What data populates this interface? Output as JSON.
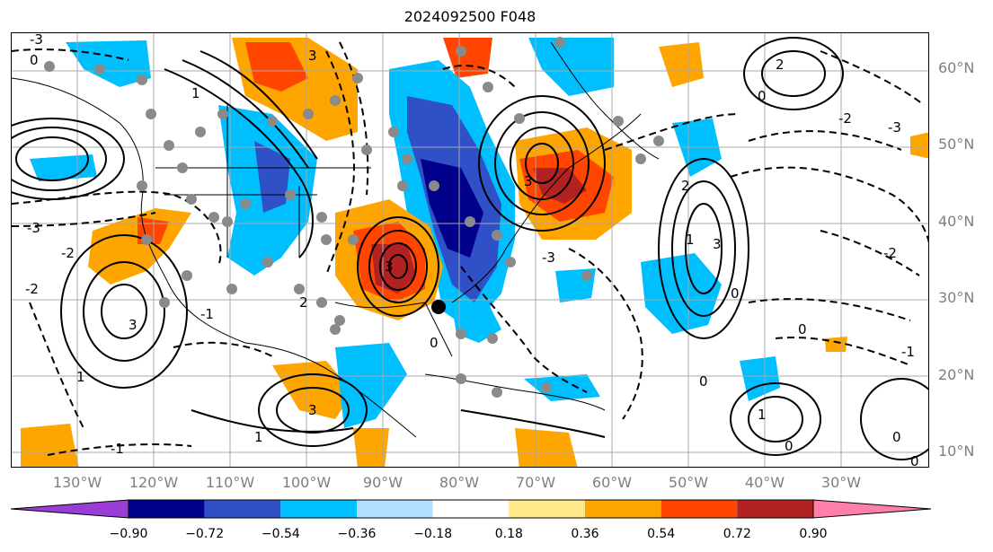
{
  "title": "2024092500 F048",
  "latitude_labels": [
    "60°N",
    "50°N",
    "40°N",
    "30°N",
    "20°N",
    "10°N"
  ],
  "longitude_labels": [
    "130°W",
    "120°W",
    "110°W",
    "100°W",
    "90°W",
    "80°W",
    "70°W",
    "60°W",
    "50°W",
    "40°W",
    "30°W"
  ],
  "colorbar": {
    "ticks": [
      "−0.90",
      "−0.72",
      "−0.54",
      "−0.36",
      "−0.18",
      "0.18",
      "0.36",
      "0.54",
      "0.72",
      "0.90"
    ],
    "colors": [
      "#9a3dd6",
      "#00008b",
      "#3050c8",
      "#00bfff",
      "#b0e0ff",
      "#ffffff",
      "#ffe88a",
      "#ffa500",
      "#ff4500",
      "#b22222",
      "#ff7fa8"
    ]
  },
  "contour_labels": [
    "0",
    "1",
    "2",
    "3",
    "-1",
    "-2",
    "-3"
  ]
}
